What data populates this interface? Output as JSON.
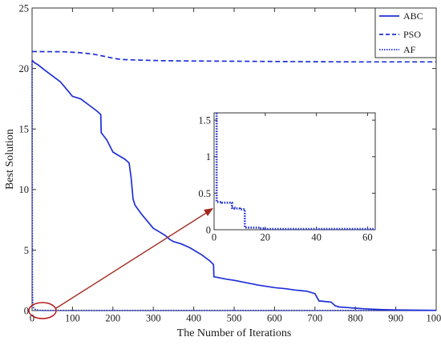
{
  "chart_data": [
    {
      "type": "line",
      "xlabel": "The Number of Iterations",
      "ylabel": "Best Solution",
      "xlim": [
        0,
        1000
      ],
      "ylim": [
        0,
        25
      ],
      "xticks": [
        0,
        100,
        200,
        300,
        400,
        500,
        600,
        700,
        800,
        900,
        1000
      ],
      "yticks": [
        0,
        5,
        10,
        15,
        20,
        25
      ],
      "grid": false,
      "legend": "top-right",
      "series": [
        {
          "name": "ABC",
          "style": "solid",
          "color": "#1f2fd6",
          "x": [
            0,
            5,
            15,
            30,
            50,
            70,
            90,
            100,
            120,
            140,
            160,
            170,
            171,
            185,
            200,
            210,
            230,
            240,
            245,
            250,
            255,
            270,
            285,
            300,
            315,
            330,
            340,
            350,
            360,
            370,
            380,
            390,
            400,
            420,
            440,
            449,
            450,
            480,
            500,
            530,
            560,
            600,
            630,
            650,
            680,
            700,
            710,
            740,
            750,
            760,
            780,
            800,
            820,
            850,
            870,
            900,
            950,
            1000
          ],
          "y": [
            20.7,
            20.5,
            20.3,
            19.9,
            19.4,
            18.9,
            18.1,
            17.7,
            17.5,
            17.0,
            16.5,
            16.2,
            14.7,
            14.1,
            13.1,
            12.9,
            12.5,
            12.2,
            11.0,
            9.2,
            8.7,
            8.0,
            7.4,
            6.8,
            6.5,
            6.2,
            5.9,
            5.7,
            5.6,
            5.5,
            5.35,
            5.2,
            5.0,
            4.6,
            4.1,
            3.8,
            2.8,
            2.6,
            2.5,
            2.3,
            2.1,
            1.9,
            1.8,
            1.7,
            1.6,
            1.4,
            0.8,
            0.7,
            0.4,
            0.3,
            0.25,
            0.2,
            0.15,
            0.1,
            0.07,
            0.05,
            0.03,
            0.02
          ]
        },
        {
          "name": "PSO",
          "style": "dashed",
          "color": "#1f2fd6",
          "x": [
            0,
            80,
            120,
            150,
            180,
            200,
            220,
            260,
            320,
            400,
            500,
            600,
            700,
            800,
            900,
            1000
          ],
          "y": [
            21.4,
            21.38,
            21.3,
            21.2,
            21.0,
            20.85,
            20.75,
            20.7,
            20.65,
            20.62,
            20.6,
            20.58,
            20.56,
            20.55,
            20.55,
            20.55
          ]
        },
        {
          "name": "AF",
          "style": "dotted",
          "color": "#1f2fd6",
          "x": [
            0,
            1,
            2,
            3,
            5,
            8,
            12,
            20,
            40,
            60,
            100,
            200,
            400,
            600,
            800,
            1000
          ],
          "y": [
            20.6,
            1.5,
            0.4,
            0.3,
            0.15,
            0.1,
            0.05,
            0.02,
            0.01,
            0.01,
            0.01,
            0.01,
            0.01,
            0.01,
            0.01,
            0.01
          ]
        }
      ]
    },
    {
      "type": "line",
      "xlim": [
        0,
        63
      ],
      "ylim": [
        0,
        1.6
      ],
      "xticks": [
        0,
        20,
        40,
        60
      ],
      "yticks": [
        0,
        0.5,
        1,
        1.5
      ],
      "grid": false,
      "series": [
        {
          "style": "dotted",
          "color": "#1f2fd6",
          "x": [
            1,
            1,
            3,
            3,
            7,
            7,
            8,
            8,
            10,
            10,
            12,
            12,
            13,
            13,
            18,
            18,
            20,
            20,
            63
          ],
          "y": [
            1.6,
            0.38,
            0.38,
            0.37,
            0.37,
            0.3,
            0.3,
            0.29,
            0.29,
            0.28,
            0.28,
            0.03,
            0.03,
            0.028,
            0.028,
            0.02,
            0.02,
            0.01,
            0.01
          ]
        }
      ]
    }
  ]
}
